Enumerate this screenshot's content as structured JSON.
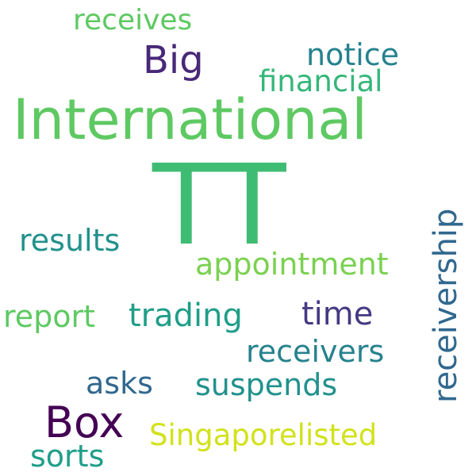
{
  "words": [
    {
      "text": "International",
      "color": "#5ec962"
    },
    {
      "text": "TT",
      "color": "#3fbc73"
    },
    {
      "text": "Box",
      "color": "#440154"
    },
    {
      "text": "Big",
      "color": "#482878"
    },
    {
      "text": "receives",
      "color": "#5ec962"
    },
    {
      "text": "notice",
      "color": "#26828e"
    },
    {
      "text": "financial",
      "color": "#35b779"
    },
    {
      "text": "receivership",
      "color": "#31688e"
    },
    {
      "text": "results",
      "color": "#21918c"
    },
    {
      "text": "appointment",
      "color": "#7ad151"
    },
    {
      "text": "report",
      "color": "#5ec962"
    },
    {
      "text": "trading",
      "color": "#1f9e89"
    },
    {
      "text": "time",
      "color": "#443983"
    },
    {
      "text": "receivers",
      "color": "#26828e"
    },
    {
      "text": "asks",
      "color": "#31688e"
    },
    {
      "text": "suspends",
      "color": "#21918c"
    },
    {
      "text": "Singaporelisted",
      "color": "#d2e21b"
    },
    {
      "text": "sorts",
      "color": "#1f9e89"
    }
  ]
}
